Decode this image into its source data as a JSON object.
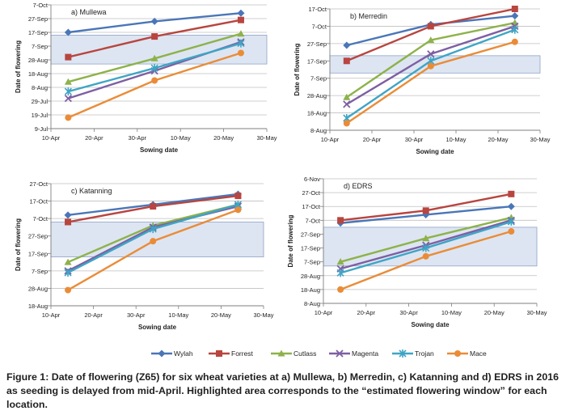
{
  "legend": {
    "entries": [
      {
        "name": "Wylah",
        "color": "#4a76b8",
        "marker": "diamond"
      },
      {
        "name": "Forrest",
        "color": "#b8453f",
        "marker": "square"
      },
      {
        "name": "Cutlass",
        "color": "#8db24b",
        "marker": "triangle"
      },
      {
        "name": "Magenta",
        "color": "#7d5fa3",
        "marker": "x"
      },
      {
        "name": "Trojan",
        "color": "#3fa5c4",
        "marker": "asterisk"
      },
      {
        "name": "Mace",
        "color": "#ea8c37",
        "marker": "circle"
      }
    ]
  },
  "caption": "Figure 1: Date of flowering (Z65) for six wheat varieties at a) Mullewa, b) Merredin, c) Katanning and d) EDRS in 2016 as seeding is delayed from mid-April.  Highlighted area corresponds to the “estimated flowering window” for each location.",
  "colors": {
    "window_fill": "#dde5f2",
    "window_border": "#8fa3c7",
    "grid": "#bfbfbf",
    "axis": "#7f7f7f",
    "text": "#1f1f1f"
  },
  "chart_data": [
    {
      "type": "line",
      "title": "a) Mullewa",
      "xlabel": "Sowing date",
      "ylabel": "Date of flowering",
      "x_ticks": [
        "10-Apr",
        "20-Apr",
        "30-Apr",
        "10-May",
        "20-May",
        "30-May"
      ],
      "y_ticks": [
        "9-Jul",
        "19-Jul",
        "29-Jul",
        "8-Aug",
        "18-Aug",
        "28-Aug",
        "7-Sep",
        "17-Sep",
        "27-Sep",
        "7-Oct"
      ],
      "xlim": [
        0,
        50
      ],
      "ylim": [
        0,
        90
      ],
      "window": [
        47,
        68
      ],
      "x": [
        4,
        24,
        44
      ],
      "series": [
        {
          "name": "Wylah",
          "values": [
            70,
            78,
            84
          ]
        },
        {
          "name": "Forrest",
          "values": [
            52,
            67,
            79
          ]
        },
        {
          "name": "Cutlass",
          "values": [
            34,
            51,
            69
          ]
        },
        {
          "name": "Magenta",
          "values": [
            22,
            42,
            63
          ]
        },
        {
          "name": "Trojan",
          "values": [
            27,
            44,
            62
          ]
        },
        {
          "name": "Mace",
          "values": [
            8,
            35,
            55
          ]
        }
      ]
    },
    {
      "type": "line",
      "title": "b) Merredin",
      "xlabel": "Sowing date",
      "ylabel": "Date of flowering",
      "x_ticks": [
        "10-Apr",
        "20-Apr",
        "30-Apr",
        "10-May",
        "20-May",
        "30-May"
      ],
      "y_ticks": [
        "8-Aug",
        "18-Aug",
        "28-Aug",
        "7-Sep",
        "17-Sep",
        "27-Sep",
        "7-Oct",
        "17-Oct"
      ],
      "xlim": [
        0,
        50
      ],
      "ylim": [
        0,
        70
      ],
      "window": [
        33,
        43
      ],
      "x": [
        4,
        24,
        44
      ],
      "series": [
        {
          "name": "Wylah",
          "values": [
            49,
            61,
            66
          ]
        },
        {
          "name": "Forrest",
          "values": [
            40,
            60,
            70
          ]
        },
        {
          "name": "Cutlass",
          "values": [
            19,
            52,
            62
          ]
        },
        {
          "name": "Magenta",
          "values": [
            15,
            44,
            60
          ]
        },
        {
          "name": "Trojan",
          "values": [
            7,
            40,
            58
          ]
        },
        {
          "name": "Mace",
          "values": [
            4,
            37,
            51
          ]
        }
      ]
    },
    {
      "type": "line",
      "title": "c) Katanning",
      "xlabel": "Sowing date",
      "ylabel": "Date of flowering",
      "x_ticks": [
        "10-Apr",
        "20-Apr",
        "30-Apr",
        "10-May",
        "20-May",
        "30-May"
      ],
      "y_ticks": [
        "18-Aug",
        "28-Aug",
        "7-Sep",
        "17-Sep",
        "27-Sep",
        "7-Oct",
        "17-Oct",
        "27-Oct"
      ],
      "xlim": [
        0,
        50
      ],
      "ylim": [
        0,
        70
      ],
      "window": [
        28,
        48
      ],
      "x": [
        4,
        24,
        44
      ],
      "series": [
        {
          "name": "Wylah",
          "values": [
            52,
            58,
            64
          ]
        },
        {
          "name": "Forrest",
          "values": [
            48,
            57,
            63
          ]
        },
        {
          "name": "Cutlass",
          "values": [
            25,
            46,
            58
          ]
        },
        {
          "name": "Magenta",
          "values": [
            20,
            45,
            57
          ]
        },
        {
          "name": "Trojan",
          "values": [
            19,
            44,
            58
          ]
        },
        {
          "name": "Mace",
          "values": [
            9,
            37,
            55
          ]
        }
      ]
    },
    {
      "type": "line",
      "title": "d) EDRS",
      "xlabel": "Sowing date",
      "ylabel": "Date of flowering",
      "x_ticks": [
        "10-Apr",
        "20-Apr",
        "30-Apr",
        "10-May",
        "20-May",
        "30-May"
      ],
      "y_ticks": [
        "8-Aug",
        "18-Aug",
        "28-Aug",
        "7-Sep",
        "17-Sep",
        "27-Sep",
        "7-Oct",
        "17-Oct",
        "27-Oct",
        "6-Nov"
      ],
      "xlim": [
        0,
        50
      ],
      "ylim": [
        0,
        90
      ],
      "window": [
        27,
        55
      ],
      "x": [
        4,
        24,
        44
      ],
      "series": [
        {
          "name": "Wylah",
          "values": [
            58,
            64,
            70
          ]
        },
        {
          "name": "Forrest",
          "values": [
            60,
            67,
            79
          ]
        },
        {
          "name": "Cutlass",
          "values": [
            30,
            47,
            62
          ]
        },
        {
          "name": "Magenta",
          "values": [
            25,
            42,
            60
          ]
        },
        {
          "name": "Trojan",
          "values": [
            22,
            40,
            59
          ]
        },
        {
          "name": "Mace",
          "values": [
            10,
            34,
            52
          ]
        }
      ]
    }
  ]
}
